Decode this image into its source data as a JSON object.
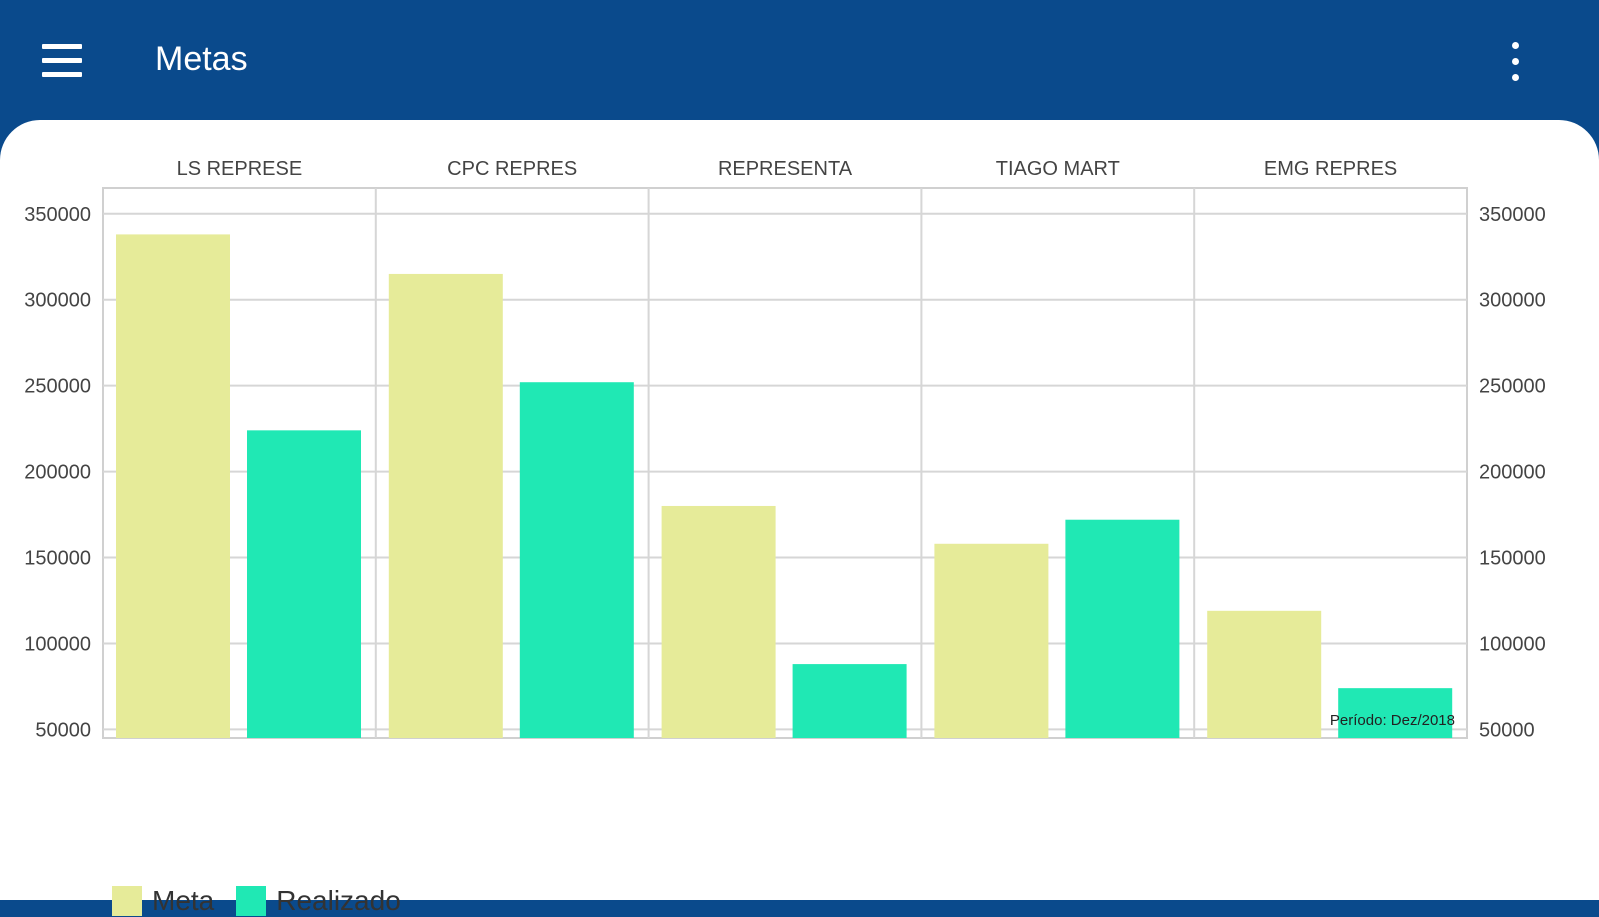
{
  "appbar": {
    "title": "Metas",
    "menu_icon": "hamburger-menu-icon",
    "more_icon": "more-vert-icon"
  },
  "colors": {
    "header": "#0a4a8c",
    "meta": "#e6eb99",
    "realizado": "#20e8b4"
  },
  "chart_data": {
    "type": "bar",
    "categories": [
      "LS REPRESE",
      "CPC REPRES",
      "REPRESENTA",
      "TIAGO MART",
      "EMG REPRES"
    ],
    "series": [
      {
        "name": "Meta",
        "values": [
          338000,
          315000,
          180000,
          158000,
          119000
        ]
      },
      {
        "name": "Realizado",
        "values": [
          224000,
          252000,
          88000,
          172000,
          74000
        ]
      }
    ],
    "yticks": [
      50000,
      100000,
      150000,
      200000,
      250000,
      300000,
      350000
    ],
    "ylim": [
      45000,
      365000
    ],
    "grid": true,
    "legend_position": "bottom-left",
    "annotation": "Período: Dez/2018"
  }
}
